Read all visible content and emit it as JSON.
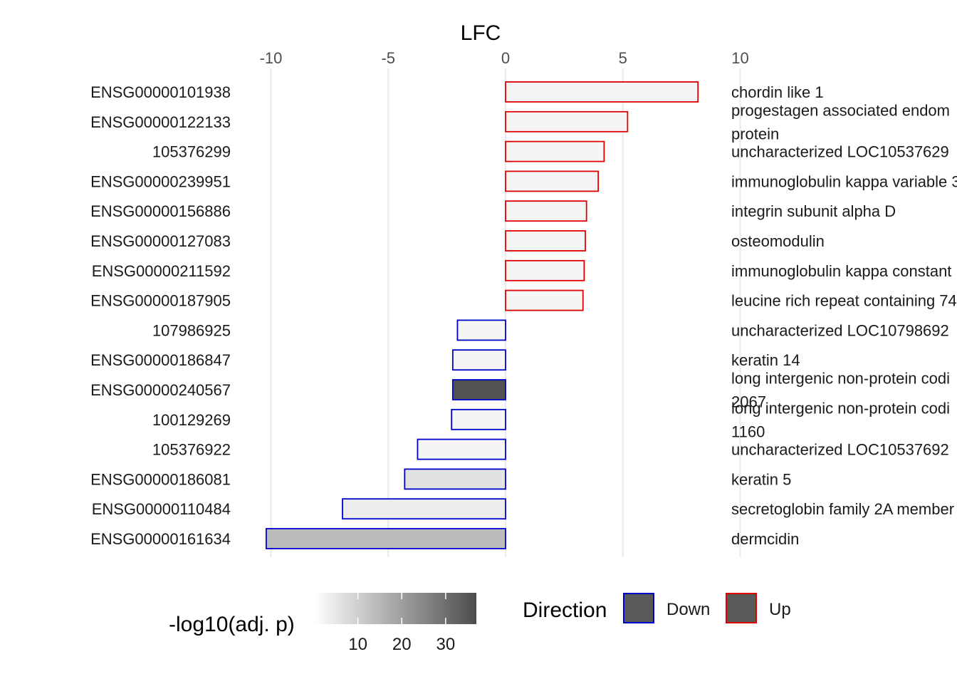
{
  "chart_data": {
    "type": "bar",
    "orientation": "horizontal",
    "xlabel": "LFC",
    "xlim": [
      -10.5,
      10.5
    ],
    "x_ticks": [
      -10,
      -5,
      0,
      5,
      10
    ],
    "x_tick_labels": [
      "-10",
      "-5",
      "0",
      "5",
      "10"
    ],
    "grid": true,
    "categories": [
      "ENSG00000101938",
      "ENSG00000122133",
      "105376299",
      "ENSG00000239951",
      "ENSG00000156886",
      "ENSG00000127083",
      "ENSG00000211592",
      "ENSG00000187905",
      "107986925",
      "ENSG00000186847",
      "ENSG00000240567",
      "100129269",
      "105376922",
      "ENSG00000186081",
      "ENSG00000110484",
      "ENSG00000161634"
    ],
    "descriptions": [
      "chordin like 1",
      "progestagen associated endom|protein",
      "uncharacterized LOC10537629",
      "immunoglobulin kappa variable 3",
      "integrin subunit alpha D",
      "osteomodulin",
      "immunoglobulin kappa constant",
      "leucine rich repeat containing 74",
      "uncharacterized LOC10798692",
      "keratin 14",
      "long intergenic non-protein codi|2067",
      "long intergenic non-protein codi|1160",
      "uncharacterized LOC10537692",
      "keratin 5",
      "secretoglobin family 2A member",
      "dermcidin"
    ],
    "values": [
      8.2,
      5.2,
      4.2,
      3.95,
      3.45,
      3.4,
      3.35,
      3.3,
      -2.05,
      -2.25,
      -2.25,
      -2.3,
      -3.75,
      -4.3,
      -6.95,
      -10.2
    ],
    "direction": [
      "Up",
      "Up",
      "Up",
      "Up",
      "Up",
      "Up",
      "Up",
      "Up",
      "Down",
      "Down",
      "Down",
      "Down",
      "Down",
      "Down",
      "Down",
      "Down"
    ],
    "neg_log10_adj_p": [
      2,
      2,
      2,
      2,
      2,
      2,
      2,
      2,
      2,
      2,
      36,
      2,
      2,
      6,
      4,
      14
    ],
    "fill_scale": {
      "title": "-log10(adj. p)",
      "min": 0,
      "max": 37,
      "low_color": "#ffffff",
      "high_color": "#4d4d4d",
      "ticks": [
        10,
        20,
        30
      ],
      "tick_labels": [
        "10",
        "20",
        "30"
      ]
    },
    "direction_legend": {
      "title": "Direction",
      "items": [
        {
          "label": "Down",
          "color": "#0000cd"
        },
        {
          "label": "Up",
          "color": "#e00000"
        }
      ]
    },
    "legend_placement": "bottom"
  }
}
